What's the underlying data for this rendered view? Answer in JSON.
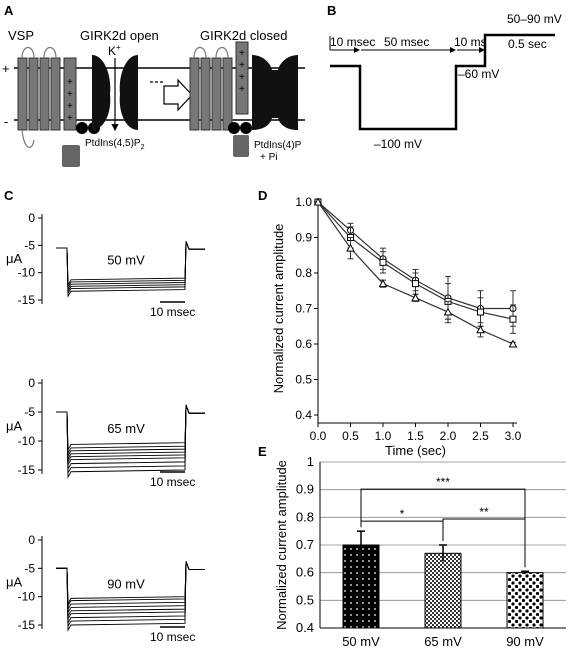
{
  "panels": {
    "A": {
      "letter": "A",
      "vsp_label": "VSP",
      "open_label": "GIRK2d open",
      "closed_label": "GIRK2d closed",
      "ion_label": "K",
      "ion_charge": "+",
      "pip2_label": "PtdIns(4,5)P",
      "pip2_sub": "2",
      "pi4p_label": "PtdIns(4)P",
      "pi_label": "+ Pi",
      "plus_sign": "+",
      "minus_sign": "-",
      "voltage_signs": [
        "+",
        "+",
        "+",
        "+"
      ]
    },
    "B": {
      "letter": "B",
      "d1": "10 msec",
      "d2": "50 msec",
      "d3": "10 ms",
      "range": "50–90 mV",
      "dur": "0.5 sec",
      "hold": "–60 mV",
      "step": "–100 mV"
    },
    "C": {
      "letter": "C",
      "unit": "μA",
      "scale_label": "10 msec",
      "yticks": [
        0,
        -5,
        -10,
        -15
      ],
      "traces": [
        {
          "label": "50 mV",
          "baseline": -5.5,
          "levels": [
            -11.0,
            -11.4,
            -11.8,
            -12.2,
            -12.6,
            -13.1
          ]
        },
        {
          "label": "65 mV",
          "baseline": -5.0,
          "levels": [
            -10.3,
            -10.9,
            -11.4,
            -11.9,
            -12.4,
            -12.9,
            -13.6,
            -14.3,
            -15.0
          ]
        },
        {
          "label": "90 mV",
          "baseline": -5.0,
          "levels": [
            -10.0,
            -10.4,
            -11.0,
            -11.6,
            -12.2,
            -12.7,
            -13.4,
            -14.0,
            -14.7
          ]
        }
      ]
    }
  },
  "chart_data": [
    {
      "panel": "D",
      "type": "line",
      "xlabel": "Time (sec)",
      "ylabel": "Normalized current amplitude",
      "xlim": [
        0,
        3
      ],
      "ylim": [
        0.4,
        1.0
      ],
      "x": [
        0,
        0.5,
        1.0,
        1.5,
        2.0,
        2.5,
        3.0
      ],
      "xticks": [
        "0.0",
        "0.5",
        "1.0",
        "1.5",
        "2.0",
        "2.5",
        "3.0"
      ],
      "yticks": [
        "0.4",
        "0.5",
        "0.6",
        "0.7",
        "0.8",
        "0.9",
        "1.0"
      ],
      "series": [
        {
          "marker": "circle",
          "values": [
            1.0,
            0.92,
            0.84,
            0.78,
            0.73,
            0.7,
            0.7
          ],
          "errors": [
            0,
            0.02,
            0.03,
            0.03,
            0.06,
            0.05,
            0.05
          ]
        },
        {
          "marker": "square",
          "values": [
            1.0,
            0.9,
            0.83,
            0.77,
            0.72,
            0.69,
            0.67
          ],
          "errors": [
            0,
            0.03,
            0.03,
            0.03,
            0.05,
            0.04,
            0.04
          ]
        },
        {
          "marker": "triangle",
          "values": [
            1.0,
            0.87,
            0.77,
            0.73,
            0.69,
            0.64,
            0.6
          ],
          "errors": [
            0,
            0.03,
            0.01,
            0.01,
            0.03,
            0.02,
            0.005
          ]
        }
      ]
    },
    {
      "panel": "E",
      "type": "bar",
      "ylabel": "Normalized current amplitude",
      "categories": [
        "50 mV",
        "65 mV",
        "90 mV"
      ],
      "values": [
        0.7,
        0.67,
        0.6
      ],
      "errors": [
        0.05,
        0.03,
        0.005
      ],
      "ylim": [
        0.4,
        1.0
      ],
      "yticks": [
        "0.4",
        "0.5",
        "0.6",
        "0.7",
        "0.8",
        "0.9",
        "1"
      ],
      "grid": true,
      "significance": [
        {
          "from": 0,
          "to": 1,
          "label": "*"
        },
        {
          "from": 0,
          "to": 2,
          "label": "***"
        },
        {
          "from": 1,
          "to": 2,
          "label": "**"
        }
      ]
    }
  ]
}
